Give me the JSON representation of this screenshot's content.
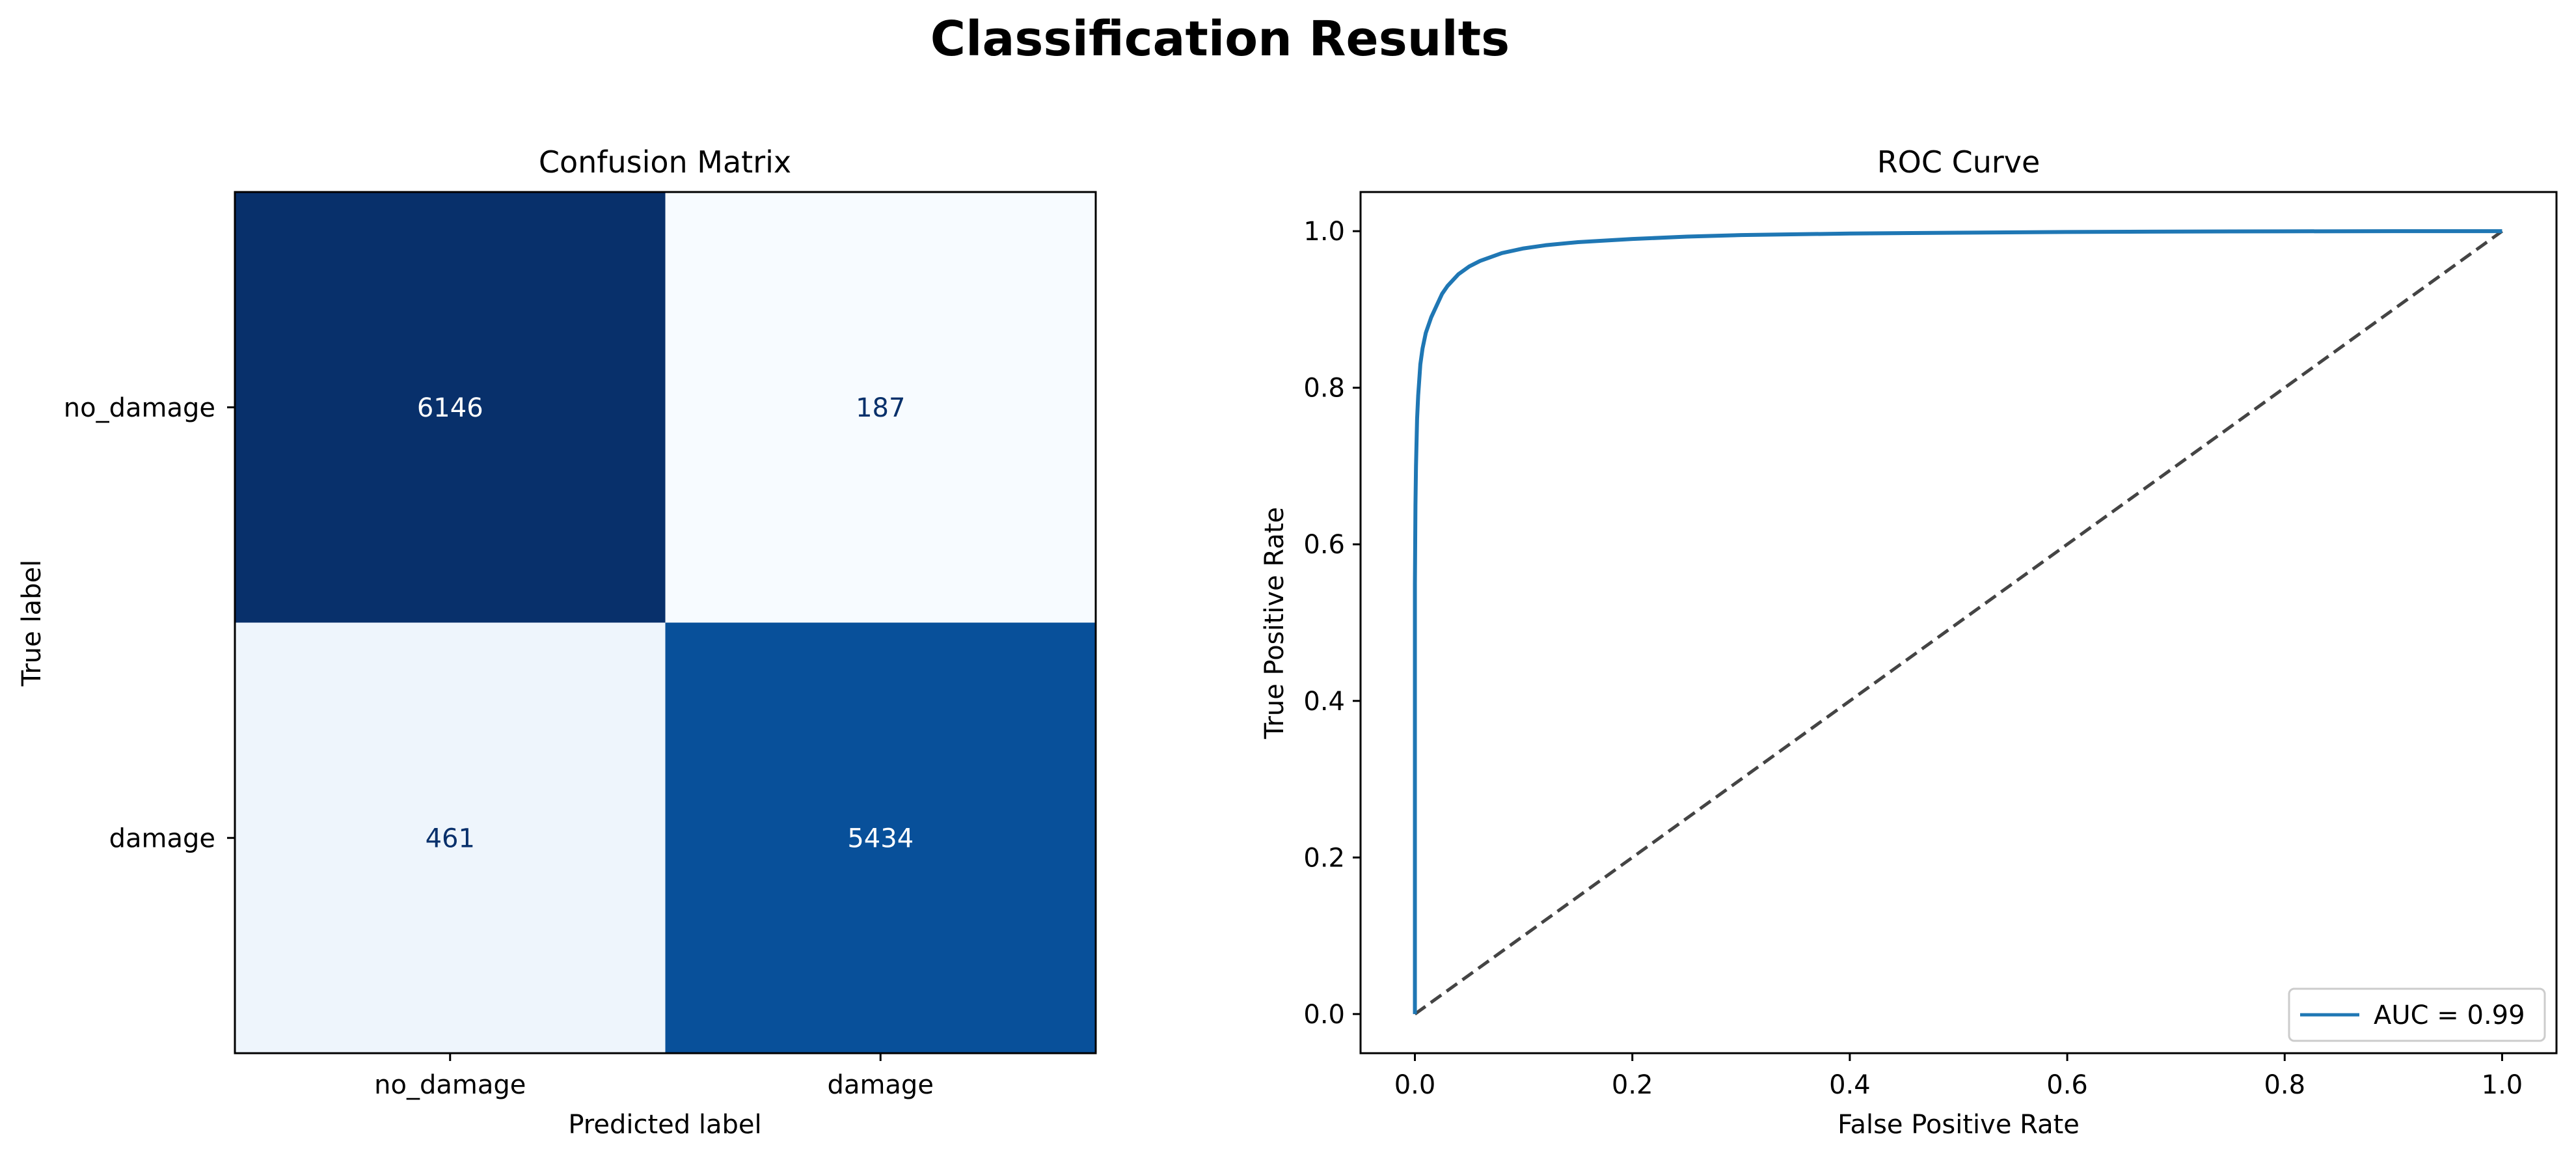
{
  "figure": {
    "title": "Classification Results"
  },
  "colors": {
    "cm_dark": "#08306b",
    "cm_mid": "#08519c",
    "cm_light_a": "#f7fbff",
    "cm_light_b": "#edf4fc",
    "text_on_dark": "#ffffff",
    "text_on_light": "#08306b",
    "roc_line": "#1f77b4",
    "chance_line": "#444444"
  },
  "chart_data": [
    {
      "type": "heatmap",
      "title": "Confusion Matrix",
      "xlabel": "Predicted label",
      "ylabel": "True label",
      "x_categories": [
        "no_damage",
        "damage"
      ],
      "y_categories": [
        "no_damage",
        "damage"
      ],
      "values": [
        [
          6146,
          187
        ],
        [
          461,
          5434
        ]
      ],
      "colormap": "Blues"
    },
    {
      "type": "line",
      "title": "ROC Curve",
      "xlabel": "False Positive Rate",
      "ylabel": "True Positive Rate",
      "xlim": [
        -0.05,
        1.05
      ],
      "ylim": [
        -0.05,
        1.05
      ],
      "xticks": [
        0.0,
        0.2,
        0.4,
        0.6,
        0.8,
        1.0
      ],
      "yticks": [
        0.0,
        0.2,
        0.4,
        0.6,
        0.8,
        1.0
      ],
      "tick_labels": [
        "0.0",
        "0.2",
        "0.4",
        "0.6",
        "0.8",
        "1.0"
      ],
      "grid": false,
      "legend_position": "lower-right",
      "series": [
        {
          "name": "AUC = 0.99",
          "x": [
            0.0,
            0.0,
            0.0005,
            0.001,
            0.0015,
            0.002,
            0.003,
            0.004,
            0.005,
            0.007,
            0.01,
            0.015,
            0.02,
            0.025,
            0.03,
            0.04,
            0.05,
            0.06,
            0.08,
            0.1,
            0.12,
            0.15,
            0.2,
            0.25,
            0.3,
            0.4,
            0.5,
            0.6,
            0.7,
            0.8,
            0.9,
            1.0
          ],
          "y": [
            0.0,
            0.55,
            0.65,
            0.7,
            0.73,
            0.76,
            0.79,
            0.81,
            0.83,
            0.85,
            0.87,
            0.89,
            0.905,
            0.92,
            0.93,
            0.945,
            0.955,
            0.962,
            0.972,
            0.978,
            0.982,
            0.986,
            0.99,
            0.993,
            0.995,
            0.997,
            0.998,
            0.999,
            0.9995,
            0.9998,
            1.0,
            1.0
          ]
        },
        {
          "x": [
            0.0,
            1.0
          ],
          "y": [
            0.0,
            1.0
          ],
          "style": "dashed"
        }
      ]
    }
  ]
}
